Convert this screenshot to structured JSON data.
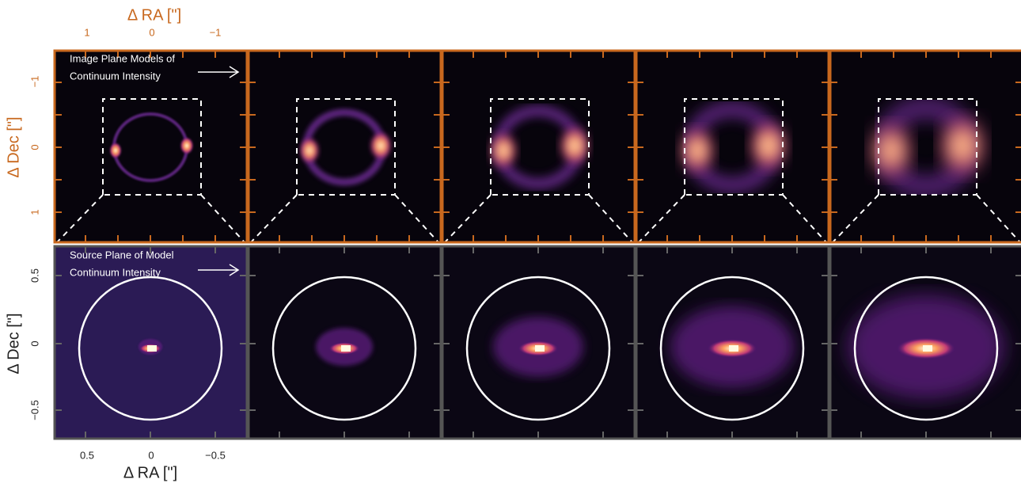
{
  "top_row": {
    "x_axis": {
      "label": "Δ RA [\"]",
      "ticks": [
        "1",
        "0",
        "−1"
      ]
    },
    "y_axis": {
      "label": "Δ Dec [\"]",
      "ticks": [
        "−1",
        "0",
        "1"
      ]
    },
    "annotation": [
      "Image Plane Models of",
      "Continuum Intensity"
    ]
  },
  "bottom_row": {
    "x_axis": {
      "label": "Δ RA [\"]",
      "ticks": [
        "0.5",
        "0",
        "−0.5"
      ]
    },
    "y_axis": {
      "label": "Δ Dec [\"]",
      "ticks": [
        "0.5",
        "0",
        "−0.5"
      ]
    },
    "annotation": [
      "Source Plane of Model",
      "Continuum Intensity"
    ]
  }
}
